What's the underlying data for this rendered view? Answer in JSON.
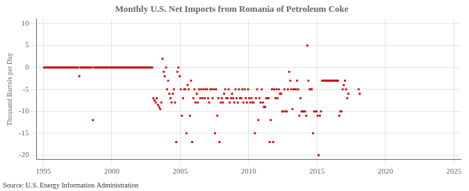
{
  "chart_data": {
    "type": "scatter",
    "title": "Monthly U.S. Net Imports from Romania of Petroleum Coke",
    "ylabel": "Thousand Barrels per Day",
    "source": "Source: U.S. Energy Information Administration",
    "color": "#cc0000",
    "marker": "square",
    "grid": true,
    "xlim": [
      1994.5,
      2025.5
    ],
    "ylim": [
      -21,
      11
    ],
    "xticks": [
      1995,
      2000,
      2005,
      2010,
      2015,
      2020,
      2025
    ],
    "yticks": [
      -20,
      -15,
      -10,
      -5,
      0,
      5,
      10
    ],
    "x": [
      1995.04,
      1995.12,
      1995.21,
      1995.29,
      1995.37,
      1995.46,
      1995.54,
      1995.62,
      1995.71,
      1995.79,
      1995.87,
      1995.96,
      1996.04,
      1996.12,
      1996.21,
      1996.29,
      1996.37,
      1996.46,
      1996.54,
      1996.62,
      1996.71,
      1996.79,
      1996.87,
      1996.96,
      1997.04,
      1997.12,
      1997.21,
      1997.29,
      1997.37,
      1997.46,
      1997.54,
      1997.62,
      1997.71,
      1997.79,
      1997.87,
      1997.96,
      1998.04,
      1998.12,
      1998.21,
      1998.29,
      1998.37,
      1998.46,
      1998.54,
      1998.62,
      1998.71,
      1998.79,
      1998.87,
      1998.96,
      1999.04,
      1999.12,
      1999.21,
      1999.29,
      1999.37,
      1999.46,
      1999.54,
      1999.62,
      1999.71,
      1999.79,
      1999.87,
      1999.96,
      2000.04,
      2000.12,
      2000.21,
      2000.29,
      2000.37,
      2000.46,
      2000.54,
      2000.62,
      2000.71,
      2000.79,
      2000.87,
      2000.96,
      2001.04,
      2001.12,
      2001.21,
      2001.29,
      2001.37,
      2001.46,
      2001.54,
      2001.62,
      2001.71,
      2001.79,
      2001.87,
      2001.96,
      2002.04,
      2002.12,
      2002.21,
      2002.29,
      2002.37,
      2002.46,
      2002.54,
      2002.62,
      2002.71,
      2002.79,
      2002.87,
      2002.96,
      2003.04,
      2003.12,
      2003.21,
      2003.29,
      2003.37,
      2003.46,
      2003.54,
      2003.62,
      2003.71,
      2003.79,
      2003.87,
      2003.96,
      2004.04,
      2004.12,
      2004.21,
      2004.29,
      2004.37,
      2004.46,
      2004.54,
      2004.62,
      2004.71,
      2004.79,
      2004.87,
      2004.96,
      2005.04,
      2005.12,
      2005.21,
      2005.29,
      2005.37,
      2005.46,
      2005.54,
      2005.62,
      2005.71,
      2005.79,
      2005.87,
      2005.96,
      2006.04,
      2006.12,
      2006.21,
      2006.29,
      2006.37,
      2006.46,
      2006.54,
      2006.62,
      2006.71,
      2006.79,
      2006.87,
      2006.96,
      2007.04,
      2007.12,
      2007.21,
      2007.29,
      2007.37,
      2007.46,
      2007.54,
      2007.62,
      2007.71,
      2007.79,
      2007.87,
      2007.96,
      2008.04,
      2008.12,
      2008.21,
      2008.29,
      2008.37,
      2008.46,
      2008.54,
      2008.62,
      2008.71,
      2008.79,
      2008.87,
      2008.96,
      2009.04,
      2009.12,
      2009.21,
      2009.29,
      2009.37,
      2009.46,
      2009.54,
      2009.62,
      2009.71,
      2009.79,
      2009.87,
      2009.96,
      2010.04,
      2010.12,
      2010.21,
      2010.29,
      2010.37,
      2010.46,
      2010.54,
      2010.62,
      2010.71,
      2010.79,
      2010.87,
      2010.96,
      2011.04,
      2011.12,
      2011.21,
      2011.29,
      2011.37,
      2011.46,
      2011.54,
      2011.62,
      2011.71,
      2011.79,
      2011.87,
      2011.96,
      2012.04,
      2012.12,
      2012.21,
      2012.29,
      2012.37,
      2012.46,
      2012.54,
      2012.62,
      2012.71,
      2012.79,
      2012.87,
      2012.96,
      2013.04,
      2013.12,
      2013.21,
      2013.29,
      2013.37,
      2013.46,
      2013.54,
      2013.62,
      2013.71,
      2013.79,
      2013.87,
      2013.96,
      2014.04,
      2014.12,
      2014.21,
      2014.29,
      2014.37,
      2014.46,
      2014.54,
      2014.62,
      2014.71,
      2014.79,
      2014.87,
      2014.96,
      2015.04,
      2015.12,
      2015.21,
      2015.29,
      2015.37,
      2015.46,
      2015.54,
      2015.62,
      2015.71,
      2015.79,
      2015.87,
      2015.96,
      2016.04,
      2016.12,
      2016.21,
      2016.29,
      2016.37,
      2016.46,
      2016.54,
      2016.62,
      2016.71,
      2016.79,
      2016.87,
      2016.96,
      2017.04,
      2017.12,
      2017.21,
      2017.29,
      2018.04,
      2018.12
    ],
    "values": [
      0,
      0,
      0,
      0,
      0,
      0,
      0,
      0,
      0,
      0,
      0,
      0,
      0,
      0,
      0,
      0,
      0,
      0,
      0,
      0,
      0,
      0,
      0,
      0,
      0,
      0,
      0,
      0,
      0,
      0,
      0,
      -2,
      0,
      0,
      0,
      0,
      0,
      0,
      0,
      0,
      0,
      0,
      0,
      -12,
      0,
      0,
      0,
      0,
      0,
      0,
      0,
      0,
      0,
      0,
      0,
      0,
      0,
      0,
      0,
      0,
      0,
      0,
      0,
      0,
      0,
      0,
      0,
      0,
      0,
      0,
      0,
      0,
      0,
      0,
      0,
      0,
      0,
      0,
      0,
      0,
      0,
      0,
      0,
      0,
      0,
      0,
      0,
      0,
      0,
      0,
      0,
      0,
      0,
      0,
      0,
      0,
      -7,
      -7.5,
      -8,
      -7,
      -8.5,
      -9,
      -9.5,
      -8,
      2,
      -1,
      -2,
      0,
      -5,
      -3,
      -6,
      -7,
      -8,
      -6,
      -5,
      -8,
      -17,
      -1,
      0,
      -2,
      -5,
      -11,
      -7,
      -5,
      -5,
      -15,
      -4,
      -5,
      -11,
      -3,
      -17,
      -7,
      -5,
      -8,
      -6,
      -8,
      -5,
      -7,
      -5,
      -7,
      -5,
      -7,
      -5,
      -5,
      -7,
      -8,
      -5,
      -5,
      -7,
      -5,
      -15,
      -5,
      -11,
      -7,
      -17,
      -8,
      -7,
      -8,
      -6,
      -5,
      -7,
      -7,
      -5,
      -8,
      -7,
      -6,
      -7,
      -8,
      -5,
      -7,
      -8,
      -5,
      -7,
      -7,
      -5,
      -8,
      -5,
      -7,
      -8,
      -5,
      -7,
      -8,
      -7,
      -8,
      -8,
      -15,
      -7,
      -5,
      -12,
      -7,
      -8,
      -5,
      -8,
      -9,
      -9,
      -7,
      -7,
      -7,
      -17,
      -12,
      -5,
      -17,
      -5,
      -7,
      -5,
      -7,
      -5,
      -6,
      -6,
      -10,
      -10,
      -5,
      -10,
      -10,
      -5,
      -1,
      -3,
      -5,
      -9.5,
      -5,
      -5,
      -5,
      -3,
      -5,
      -11,
      -7,
      -10,
      -10,
      -10,
      -10,
      -11,
      5,
      -3,
      -5,
      -5,
      -5,
      -15,
      -10,
      -10,
      -10,
      -11,
      -20,
      -11,
      -10,
      -3,
      -3,
      -3,
      -3,
      -3,
      -3,
      -3,
      -3,
      -3,
      -3,
      -3,
      -3,
      -3,
      -3,
      -3,
      -11,
      -10,
      -10,
      -5,
      -4,
      -3,
      -5,
      -7,
      -6,
      -5,
      -6
    ]
  }
}
